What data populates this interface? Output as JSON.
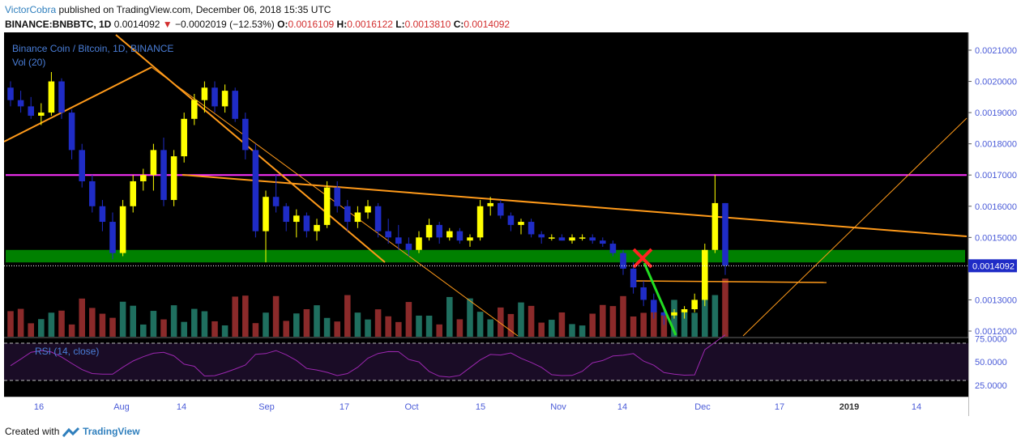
{
  "header": {
    "author": "VictorCobra",
    "published_text": "published on TradingView.com, December 06, 2018 15:35 UTC",
    "symbol": "BINANCE:BNBBTC, 1D",
    "last": "0.0014092",
    "change_arrow": "▼",
    "change": "−0.0002019 (−12.53%)",
    "o_label": "O:",
    "o": "0.0016109",
    "h_label": "H:",
    "h": "0.0016122",
    "l_label": "L:",
    "l": "0.0013810",
    "c_label": "C:",
    "c": "0.0014092"
  },
  "legend": {
    "title": "Binance Coin / Bitcoin, 1D, BINANCE",
    "volume": "Vol (20)",
    "rsi": "RSI (14, close)"
  },
  "footer": {
    "created_with": "Created with",
    "brand": "TradingView"
  },
  "colors": {
    "background": "#000000",
    "bull": "#ffff00",
    "bear": "#1f2cc6",
    "vol_up": "#1f6f5f",
    "vol_down": "#8b2a2a",
    "support_zone": "#008000",
    "resistance": "#ff33ff",
    "trendline": "#ff9a1a",
    "rsi_line": "#9c27b0",
    "price_label": "#1f2cc6"
  },
  "chart_data": {
    "type": "candlestick",
    "symbol": "BNBBTC",
    "interval": "1D",
    "x_ticks": [
      "16",
      "Aug",
      "14",
      "Sep",
      "17",
      "Oct",
      "15",
      "Nov",
      "14",
      "Dec",
      "17",
      "2019",
      "14"
    ],
    "y_ticks": [
      "0.0021000",
      "0.0020000",
      "0.0019000",
      "0.0018000",
      "0.0017000",
      "0.0016000",
      "0.0015000",
      "0.0014000",
      "0.0013000",
      "0.0012000"
    ],
    "ylim": [
      0.00118,
      0.00213
    ],
    "last_price": 0.0014092,
    "last_price_label": "0.0014092",
    "ohlc_approx": [
      [
        0.00198,
        0.002,
        0.00192,
        0.00194
      ],
      [
        0.00194,
        0.00197,
        0.0019,
        0.00192
      ],
      [
        0.00192,
        0.00195,
        0.00188,
        0.00189
      ],
      [
        0.00189,
        0.00193,
        0.00186,
        0.0019
      ],
      [
        0.0019,
        0.00203,
        0.00189,
        0.002
      ],
      [
        0.002,
        0.00201,
        0.00188,
        0.0019
      ],
      [
        0.0019,
        0.00191,
        0.00175,
        0.00178
      ],
      [
        0.00178,
        0.0018,
        0.00166,
        0.00168
      ],
      [
        0.00168,
        0.0017,
        0.00158,
        0.0016
      ],
      [
        0.0016,
        0.00162,
        0.00152,
        0.00155
      ],
      [
        0.00155,
        0.00158,
        0.00143,
        0.00145
      ],
      [
        0.00145,
        0.00162,
        0.00144,
        0.0016
      ],
      [
        0.0016,
        0.0017,
        0.00158,
        0.00168
      ],
      [
        0.00168,
        0.00172,
        0.00165,
        0.0017
      ],
      [
        0.0017,
        0.0018,
        0.00165,
        0.00178
      ],
      [
        0.00178,
        0.00182,
        0.0016,
        0.00162
      ],
      [
        0.00162,
        0.00178,
        0.0016,
        0.00176
      ],
      [
        0.00176,
        0.0019,
        0.00174,
        0.00188
      ],
      [
        0.00188,
        0.00196,
        0.00186,
        0.00194
      ],
      [
        0.00194,
        0.002,
        0.0019,
        0.00198
      ],
      [
        0.00198,
        0.002,
        0.0019,
        0.00192
      ],
      [
        0.00192,
        0.00199,
        0.0019,
        0.00197
      ],
      [
        0.00197,
        0.00198,
        0.00187,
        0.00188
      ],
      [
        0.00188,
        0.0019,
        0.00175,
        0.00178
      ],
      [
        0.00178,
        0.0018,
        0.0015,
        0.00152
      ],
      [
        0.00152,
        0.00165,
        0.00142,
        0.00163
      ],
      [
        0.00163,
        0.0017,
        0.00158,
        0.0016
      ],
      [
        0.0016,
        0.00161,
        0.00152,
        0.00155
      ],
      [
        0.00155,
        0.00159,
        0.0015,
        0.00157
      ],
      [
        0.00157,
        0.00158,
        0.0015,
        0.00152
      ],
      [
        0.00152,
        0.00156,
        0.00149,
        0.00154
      ],
      [
        0.00154,
        0.00168,
        0.00153,
        0.00166
      ],
      [
        0.00166,
        0.00168,
        0.00158,
        0.0016
      ],
      [
        0.0016,
        0.00162,
        0.00152,
        0.00155
      ],
      [
        0.00155,
        0.0016,
        0.00153,
        0.00158
      ],
      [
        0.00158,
        0.00162,
        0.00156,
        0.0016
      ],
      [
        0.0016,
        0.00161,
        0.0015,
        0.00152
      ],
      [
        0.00152,
        0.00156,
        0.00148,
        0.0015
      ],
      [
        0.0015,
        0.00154,
        0.00146,
        0.00148
      ],
      [
        0.00148,
        0.0015,
        0.00144,
        0.00146
      ],
      [
        0.00146,
        0.00152,
        0.00145,
        0.0015
      ],
      [
        0.0015,
        0.00156,
        0.00149,
        0.00154
      ],
      [
        0.00154,
        0.00155,
        0.00148,
        0.0015
      ],
      [
        0.0015,
        0.00153,
        0.00149,
        0.00152
      ],
      [
        0.00152,
        0.00153,
        0.00148,
        0.00149
      ],
      [
        0.00149,
        0.00151,
        0.00147,
        0.0015
      ],
      [
        0.0015,
        0.00162,
        0.00149,
        0.0016
      ],
      [
        0.0016,
        0.00163,
        0.00157,
        0.00161
      ],
      [
        0.00161,
        0.00162,
        0.00156,
        0.00157
      ],
      [
        0.00157,
        0.00158,
        0.00152,
        0.00154
      ],
      [
        0.00154,
        0.00156,
        0.00151,
        0.00155
      ],
      [
        0.00155,
        0.00156,
        0.0015,
        0.00151
      ],
      [
        0.00151,
        0.00152,
        0.00148,
        0.0015
      ],
      [
        0.0015,
        0.00151,
        0.00149,
        0.0015
      ],
      [
        0.0015,
        0.00151,
        0.00149,
        0.00149
      ],
      [
        0.00149,
        0.00151,
        0.00148,
        0.0015
      ],
      [
        0.0015,
        0.00151,
        0.00149,
        0.0015
      ],
      [
        0.0015,
        0.00151,
        0.00148,
        0.00149
      ],
      [
        0.00149,
        0.0015,
        0.00147,
        0.00148
      ],
      [
        0.00148,
        0.00149,
        0.00144,
        0.00145
      ],
      [
        0.00145,
        0.00146,
        0.00138,
        0.0014
      ],
      [
        0.0014,
        0.00142,
        0.00132,
        0.00134
      ],
      [
        0.00134,
        0.00136,
        0.00128,
        0.0013
      ],
      [
        0.0013,
        0.00132,
        0.00124,
        0.00126
      ],
      [
        0.00126,
        0.00128,
        0.00122,
        0.00125
      ],
      [
        0.00125,
        0.00127,
        0.00124,
        0.00126
      ],
      [
        0.00126,
        0.00128,
        0.00124,
        0.00127
      ],
      [
        0.00127,
        0.00132,
        0.00126,
        0.0013
      ],
      [
        0.0013,
        0.00148,
        0.00128,
        0.00146
      ],
      [
        0.00146,
        0.0017,
        0.00145,
        0.00161
      ],
      [
        0.00161,
        0.00161,
        0.00138,
        0.00141
      ]
    ],
    "support_zone": [
      0.00142,
      0.00146
    ],
    "resistance_level": 0.0017,
    "horizontal_level": 0.00137,
    "rsi": {
      "upper": 70,
      "lower": 30,
      "y_ticks": [
        "75.0000",
        "50.0000",
        "25.0000"
      ]
    }
  }
}
